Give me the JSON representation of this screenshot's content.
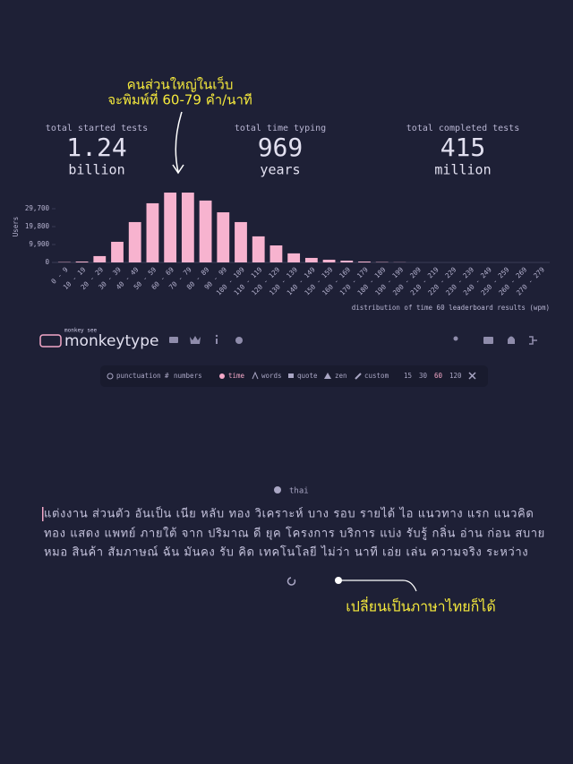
{
  "annotations": {
    "top": [
      "คนส่วนใหญ่ในเว็บ",
      "จะพิมพ์ที่ 60-79 คำ/นาที"
    ],
    "bottom": "เปลี่ยนเป็นภาษาไทยก็ได้"
  },
  "stats": [
    {
      "label": "total started tests",
      "value": "1.24",
      "unit": "billion"
    },
    {
      "label": "total time typing",
      "value": "969",
      "unit": "years"
    },
    {
      "label": "total completed tests",
      "value": "415",
      "unit": "million"
    }
  ],
  "chart_data": {
    "type": "bar",
    "y_label": "Users",
    "x_label": "distribution of time 60 leaderboard results (wpm)",
    "categories": [
      "0 - 9",
      "10 - 19",
      "20 - 29",
      "30 - 39",
      "40 - 49",
      "50 - 59",
      "60 - 69",
      "70 - 79",
      "80 - 89",
      "90 - 99",
      "100 - 109",
      "110 - 119",
      "120 - 129",
      "130 - 139",
      "140 - 149",
      "150 - 159",
      "160 - 169",
      "170 - 179",
      "180 - 189",
      "190 - 199",
      "200 - 209",
      "210 - 219",
      "220 - 229",
      "230 - 239",
      "240 - 249",
      "250 - 259",
      "260 - 269",
      "270 - 279"
    ],
    "values": [
      200,
      500,
      3500,
      11400,
      22300,
      32700,
      38600,
      38600,
      34200,
      27700,
      22300,
      14400,
      9400,
      5000,
      2500,
      1500,
      1000,
      500,
      200,
      100,
      0,
      0,
      0,
      0,
      0,
      0,
      0,
      0
    ],
    "color": "#f7b3cf",
    "ylim": [
      0,
      39600
    ],
    "yticks": [
      0,
      {
        "value": 9900,
        "label": "9,900"
      },
      {
        "value": 19800,
        "label": "19,800"
      },
      {
        "value": 29700,
        "label": "29,700"
      }
    ]
  },
  "nav": {
    "logo_small": "monkey see",
    "logo": "monkeytype"
  },
  "modes": {
    "options": [
      "punctuation",
      "numbers",
      "time",
      "words",
      "quote",
      "zen",
      "custom"
    ],
    "durations": [
      "15",
      "30",
      "60",
      "120"
    ]
  },
  "language": "thai",
  "words": [
    "แต่งงาน ส่วนตัว อันเป็น เนีย หลับ ทอง วิเคราะห์ บาง รอบ รายได้ ไอ แนวทาง แรก แนวคิด",
    "ทอง แสดง แพทย์ ภายใต้ จาก ปริมาณ ดี ยุค โครงการ บริการ แบ่ง รับรู้ กลิ่น อ่าน ก่อน สบาย",
    "หมอ สินค้า สัมภาษณ์ ฉัน มันคง รับ คิด เทคโนโลยี ไม่ว่า นาที เอ่ย เล่น ความจริง ระหว่าง"
  ]
}
